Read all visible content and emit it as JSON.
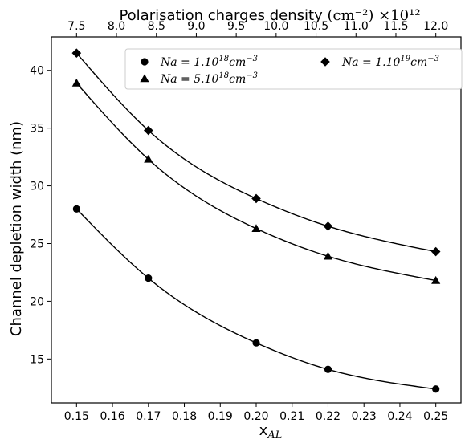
{
  "chart_data": {
    "type": "line",
    "xlabel": "x",
    "xlabel_sub": "AL",
    "ylabel": "Channel depletion width (nm)",
    "top_xlabel_main": "Polarisation charges density",
    "top_xlabel_unit": "(cm⁻²) ×10¹²",
    "xlim": [
      0.143,
      0.257
    ],
    "ylim": [
      11.2,
      42.9
    ],
    "x_ticks": [
      0.15,
      0.16,
      0.17,
      0.18,
      0.19,
      0.2,
      0.21,
      0.22,
      0.23,
      0.24,
      0.25
    ],
    "x_tick_labels": [
      "0.15",
      "0.16",
      "0.17",
      "0.18",
      "0.19",
      "0.20",
      "0.21",
      "0.22",
      "0.23",
      "0.24",
      "0.25"
    ],
    "y_ticks": [
      15,
      20,
      25,
      30,
      35,
      40
    ],
    "y_tick_labels": [
      "15",
      "20",
      "25",
      "30",
      "35",
      "40"
    ],
    "top_axis": {
      "ticks": [
        7.5,
        8.0,
        8.5,
        9.0,
        9.5,
        10.0,
        10.5,
        11.0,
        11.5,
        12.0
      ],
      "tick_labels": [
        "7.5",
        "8.0",
        "8.5",
        "9.0",
        "9.5",
        "10.0",
        "10.5",
        "11.0",
        "11.5",
        "12.0"
      ],
      "calibration": {
        "x": [
          0.15,
          0.25
        ],
        "value": [
          7.5,
          12.0
        ]
      }
    },
    "x": [
      0.15,
      0.17,
      0.2,
      0.22,
      0.25
    ],
    "series": [
      {
        "name": "Na = 1.10¹⁸cm⁻³",
        "marker": "circle",
        "values": [
          28.0,
          22.0,
          16.4,
          14.1,
          12.4
        ]
      },
      {
        "name": "Na = 5.10¹⁸cm⁻³",
        "marker": "triangle",
        "values": [
          38.9,
          32.3,
          26.3,
          23.9,
          21.8
        ]
      },
      {
        "name": "Na = 1.10¹⁹cm⁻³",
        "marker": "diamond",
        "values": [
          41.5,
          34.8,
          28.9,
          26.5,
          24.3
        ]
      }
    ],
    "legend": {
      "placement": "top-right",
      "entries": [
        {
          "marker": "circle",
          "prefix": "Na = 1.10",
          "sup": "18",
          "unit": "cm",
          "unit_sup": "−3"
        },
        {
          "marker": "diamond",
          "prefix": "Na = 1.10",
          "sup": "19",
          "unit": "cm",
          "unit_sup": "−3"
        },
        {
          "marker": "triangle",
          "prefix": "Na = 5.10",
          "sup": "18",
          "unit": "cm",
          "unit_sup": "−3"
        }
      ]
    },
    "grid": false,
    "colors": {
      "line": "#000000",
      "marker": "#000000",
      "background": "#ffffff"
    }
  }
}
